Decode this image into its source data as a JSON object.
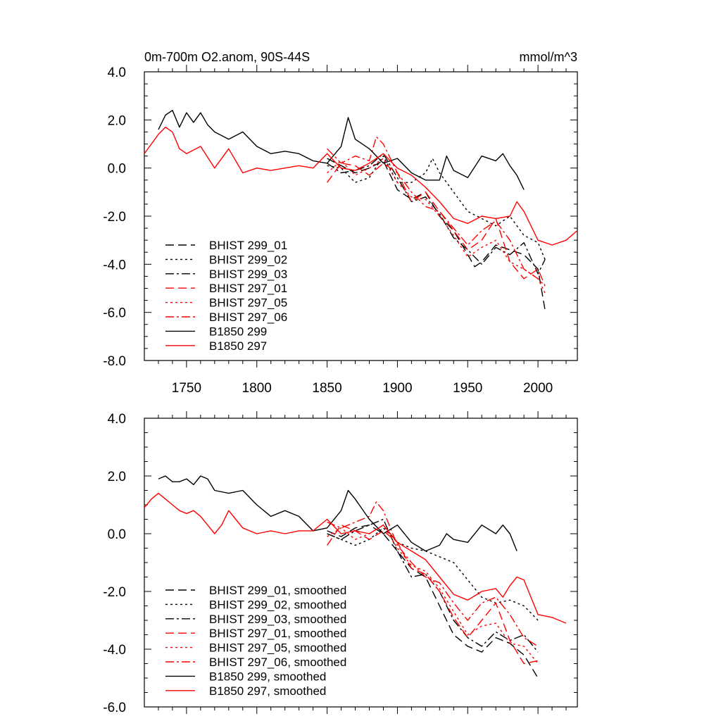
{
  "chart_data": [
    {
      "type": "line",
      "title_left": "0m-700m O2.anom, 90S-44S",
      "title_right": "mmol/m^3",
      "xlim": [
        1720,
        2028
      ],
      "ylim": [
        -8.0,
        4.0
      ],
      "xticks": [
        1750,
        1800,
        1850,
        1900,
        1950,
        2000
      ],
      "xtick_labels": [
        "1750",
        "1800",
        "1850",
        "1900",
        "1950",
        "2000"
      ],
      "yticks": [
        4.0,
        2.0,
        0.0,
        -2.0,
        -4.0,
        -6.0,
        -8.0
      ],
      "ytick_labels": [
        "4.0",
        "2.0",
        "0.0",
        "-2.0",
        "-4.0",
        "-6.0",
        "-8.0"
      ],
      "series": [
        {
          "name": "BHIST 299_01",
          "color": "#000000",
          "dash": "dash",
          "x": [
            1850,
            1860,
            1870,
            1880,
            1890,
            1900,
            1910,
            1920,
            1930,
            1940,
            1950,
            1955,
            1960,
            1970,
            1980,
            1990,
            2000,
            2005
          ],
          "values": [
            0.4,
            0.1,
            -0.2,
            0.0,
            0.3,
            -0.9,
            -1.3,
            -1.0,
            -2.0,
            -2.6,
            -3.6,
            -4.1,
            -3.9,
            -3.2,
            -3.4,
            -3.6,
            -4.2,
            -5.9
          ]
        },
        {
          "name": "BHIST 299_02",
          "color": "#000000",
          "dash": "dot",
          "x": [
            1850,
            1860,
            1870,
            1880,
            1890,
            1900,
            1910,
            1920,
            1925,
            1930,
            1940,
            1950,
            1960,
            1970,
            1980,
            1990,
            2000,
            2005
          ],
          "values": [
            0.1,
            0.0,
            -0.6,
            -0.4,
            0.5,
            -0.6,
            -0.6,
            -0.2,
            0.4,
            -0.2,
            -1.0,
            -1.8,
            -2.1,
            -2.4,
            -2.0,
            -2.8,
            -3.1,
            -3.8
          ]
        },
        {
          "name": "BHIST 299_03",
          "color": "#000000",
          "dash": "dashdot",
          "x": [
            1850,
            1860,
            1870,
            1880,
            1890,
            1900,
            1910,
            1920,
            1930,
            1940,
            1950,
            1960,
            1970,
            1980,
            1990,
            2000,
            2005
          ],
          "values": [
            0.2,
            -0.2,
            -0.1,
            0.1,
            0.6,
            -0.4,
            -1.4,
            -1.2,
            -1.9,
            -2.9,
            -3.4,
            -4.0,
            -3.3,
            -3.6,
            -3.1,
            -4.4,
            -3.8
          ]
        },
        {
          "name": "BHIST 297_01",
          "color": "#ff0000",
          "dash": "dash",
          "x": [
            1850,
            1860,
            1870,
            1880,
            1890,
            1900,
            1910,
            1920,
            1930,
            1940,
            1950,
            1960,
            1970,
            1980,
            1990,
            2000,
            2005
          ],
          "values": [
            -0.6,
            0.2,
            0.1,
            -0.3,
            0.2,
            -0.2,
            -1.4,
            -1.0,
            -1.8,
            -2.6,
            -3.4,
            -3.0,
            -2.1,
            -3.9,
            -4.6,
            -4.2,
            -4.9
          ]
        },
        {
          "name": "BHIST 297_05",
          "color": "#ff0000",
          "dash": "dot",
          "x": [
            1850,
            1860,
            1870,
            1880,
            1890,
            1900,
            1910,
            1920,
            1930,
            1940,
            1950,
            1960,
            1970,
            1980,
            1990,
            2000,
            2005
          ],
          "values": [
            -0.2,
            0.3,
            -0.3,
            0.0,
            0.4,
            -0.6,
            -1.2,
            -1.3,
            -2.0,
            -2.8,
            -3.7,
            -3.3,
            -3.0,
            -3.9,
            -4.2,
            -4.6,
            -5.2
          ]
        },
        {
          "name": "BHIST 297_06",
          "color": "#ff0000",
          "dash": "dashdot",
          "x": [
            1850,
            1860,
            1870,
            1880,
            1885,
            1890,
            1900,
            1910,
            1920,
            1930,
            1940,
            1950,
            1960,
            1970,
            1980,
            1990,
            2000,
            2005
          ],
          "values": [
            0.8,
            0.2,
            0.5,
            0.3,
            1.3,
            1.0,
            -0.2,
            -1.0,
            -1.6,
            -1.8,
            -2.5,
            -3.2,
            -2.6,
            -2.2,
            -3.0,
            -4.2,
            -4.6,
            -4.9
          ]
        },
        {
          "name": "B1850 299",
          "color": "#000000",
          "dash": "solid",
          "x": [
            1730,
            1735,
            1740,
            1745,
            1750,
            1755,
            1760,
            1765,
            1770,
            1780,
            1790,
            1800,
            1810,
            1820,
            1830,
            1840,
            1850,
            1860,
            1865,
            1870,
            1880,
            1890,
            1900,
            1910,
            1920,
            1930,
            1935,
            1940,
            1950,
            1960,
            1970,
            1975,
            1980,
            1985,
            1990
          ],
          "values": [
            1.6,
            2.2,
            2.4,
            1.7,
            2.3,
            1.9,
            2.3,
            1.8,
            1.5,
            1.2,
            1.5,
            0.9,
            0.6,
            0.7,
            0.6,
            0.3,
            0.2,
            0.9,
            2.1,
            1.2,
            0.8,
            0.2,
            0.4,
            -0.2,
            -0.5,
            -0.5,
            0.5,
            -0.1,
            -0.4,
            0.5,
            0.3,
            0.6,
            0.1,
            -0.3,
            -0.9
          ]
        },
        {
          "name": "B1850 297",
          "color": "#ff0000",
          "dash": "solid",
          "x": [
            1720,
            1725,
            1730,
            1735,
            1740,
            1745,
            1750,
            1760,
            1770,
            1780,
            1790,
            1800,
            1810,
            1820,
            1830,
            1840,
            1850,
            1860,
            1870,
            1880,
            1890,
            1900,
            1910,
            1920,
            1930,
            1940,
            1950,
            1960,
            1970,
            1980,
            1985,
            1990,
            2000,
            2010,
            2020,
            2028
          ],
          "values": [
            0.6,
            1.0,
            1.4,
            1.7,
            1.5,
            0.8,
            0.6,
            0.9,
            0.0,
            0.8,
            -0.2,
            0.0,
            -0.1,
            0.0,
            0.1,
            0.0,
            0.6,
            0.0,
            -0.1,
            0.2,
            0.6,
            0.0,
            -0.3,
            -0.8,
            -1.4,
            -2.1,
            -2.3,
            -2.0,
            -2.1,
            -2.0,
            -1.4,
            -1.8,
            -3.0,
            -3.2,
            -3.0,
            -2.6
          ]
        }
      ],
      "legend": [
        {
          "label": "BHIST 299_01",
          "color": "#000000",
          "dash": "dash"
        },
        {
          "label": "BHIST 299_02",
          "color": "#000000",
          "dash": "dot"
        },
        {
          "label": "BHIST 299_03",
          "color": "#000000",
          "dash": "dashdot"
        },
        {
          "label": "BHIST 297_01",
          "color": "#ff0000",
          "dash": "dash"
        },
        {
          "label": "BHIST 297_05",
          "color": "#ff0000",
          "dash": "dot"
        },
        {
          "label": "BHIST 297_06",
          "color": "#ff0000",
          "dash": "dashdot"
        },
        {
          "label": "B1850 299",
          "color": "#000000",
          "dash": "solid"
        },
        {
          "label": "B1850 297",
          "color": "#ff0000",
          "dash": "solid"
        }
      ]
    },
    {
      "type": "line",
      "xlim": [
        1720,
        2028
      ],
      "ylim": [
        -6.0,
        4.0
      ],
      "yticks": [
        4.0,
        2.0,
        0.0,
        -2.0,
        -4.0,
        -6.0
      ],
      "ytick_labels": [
        "4.0",
        "2.0",
        "0.0",
        "-2.0",
        "-4.0",
        "-6.0"
      ],
      "series": [
        {
          "name": "BHIST 299_01, smoothed",
          "color": "#000000",
          "dash": "dash",
          "x": [
            1850,
            1860,
            1870,
            1880,
            1890,
            1900,
            1910,
            1920,
            1930,
            1940,
            1950,
            1960,
            1970,
            1980,
            1990,
            2000
          ],
          "values": [
            0.1,
            -0.1,
            0.2,
            0.3,
            0.0,
            -0.6,
            -1.2,
            -1.5,
            -2.5,
            -3.5,
            -3.9,
            -4.1,
            -3.6,
            -3.8,
            -4.2,
            -5.0
          ]
        },
        {
          "name": "BHIST 299_02, smoothed",
          "color": "#000000",
          "dash": "dot",
          "x": [
            1850,
            1860,
            1870,
            1880,
            1890,
            1900,
            1910,
            1920,
            1930,
            1940,
            1950,
            1960,
            1970,
            1980,
            1990,
            2000
          ],
          "values": [
            0.0,
            -0.2,
            -0.4,
            -0.2,
            0.2,
            -0.3,
            -0.5,
            -0.6,
            -0.8,
            -1.0,
            -1.6,
            -2.2,
            -2.4,
            -2.3,
            -2.5,
            -3.0
          ]
        },
        {
          "name": "BHIST 299_03, smoothed",
          "color": "#000000",
          "dash": "dashdot",
          "x": [
            1850,
            1860,
            1870,
            1880,
            1890,
            1900,
            1910,
            1920,
            1930,
            1940,
            1950,
            1960,
            1970,
            1980,
            1990,
            2000
          ],
          "values": [
            0.0,
            -0.2,
            0.1,
            0.3,
            0.5,
            -0.6,
            -1.5,
            -1.4,
            -2.0,
            -3.0,
            -3.6,
            -3.9,
            -3.4,
            -3.7,
            -3.5,
            -4.1
          ]
        },
        {
          "name": "BHIST 297_01, smoothed",
          "color": "#ff0000",
          "dash": "dash",
          "x": [
            1850,
            1860,
            1870,
            1880,
            1890,
            1900,
            1910,
            1920,
            1930,
            1940,
            1950,
            1960,
            1970,
            1980,
            1990,
            2000
          ],
          "values": [
            -0.4,
            0.3,
            0.1,
            -0.2,
            0.1,
            -0.3,
            -1.2,
            -1.4,
            -2.0,
            -2.9,
            -3.6,
            -3.0,
            -2.4,
            -3.7,
            -4.5,
            -4.4
          ]
        },
        {
          "name": "BHIST 297_05, smoothed",
          "color": "#ff0000",
          "dash": "dot",
          "x": [
            1850,
            1860,
            1870,
            1880,
            1890,
            1900,
            1910,
            1920,
            1930,
            1940,
            1950,
            1960,
            1970,
            1980,
            1990,
            2000
          ],
          "values": [
            -0.1,
            0.2,
            -0.2,
            0.0,
            0.3,
            -0.5,
            -1.1,
            -1.3,
            -1.9,
            -2.7,
            -3.5,
            -3.2,
            -3.1,
            -3.8,
            -3.9,
            -4.5
          ]
        },
        {
          "name": "BHIST 297_06, smoothed",
          "color": "#ff0000",
          "dash": "dashdot",
          "x": [
            1850,
            1860,
            1870,
            1880,
            1885,
            1890,
            1900,
            1910,
            1920,
            1930,
            1940,
            1950,
            1960,
            1970,
            1980,
            1990,
            2000
          ],
          "values": [
            0.4,
            0.2,
            0.4,
            0.6,
            1.1,
            0.8,
            -0.4,
            -1.0,
            -1.5,
            -1.7,
            -2.4,
            -3.0,
            -2.4,
            -2.2,
            -2.8,
            -3.6,
            -3.9
          ]
        },
        {
          "name": "B1850 299, smoothed",
          "color": "#000000",
          "dash": "solid",
          "x": [
            1730,
            1735,
            1740,
            1745,
            1750,
            1755,
            1760,
            1765,
            1770,
            1780,
            1790,
            1800,
            1810,
            1820,
            1830,
            1840,
            1850,
            1860,
            1865,
            1870,
            1880,
            1890,
            1900,
            1910,
            1920,
            1930,
            1935,
            1940,
            1950,
            1960,
            1970,
            1975,
            1980,
            1985
          ],
          "values": [
            1.9,
            2.0,
            1.8,
            1.8,
            1.9,
            1.7,
            2.0,
            1.9,
            1.5,
            1.4,
            1.5,
            1.0,
            0.6,
            0.8,
            0.6,
            0.1,
            0.2,
            0.8,
            1.5,
            1.2,
            0.5,
            0.0,
            0.3,
            -0.3,
            -0.6,
            -0.4,
            0.0,
            -0.2,
            -0.3,
            0.3,
            0.0,
            0.3,
            0.0,
            -0.6
          ]
        },
        {
          "name": "B1850 297, smoothed",
          "color": "#ff0000",
          "dash": "solid",
          "x": [
            1720,
            1725,
            1730,
            1735,
            1740,
            1745,
            1750,
            1755,
            1760,
            1765,
            1770,
            1775,
            1780,
            1785,
            1790,
            1800,
            1810,
            1820,
            1830,
            1840,
            1850,
            1860,
            1870,
            1880,
            1890,
            1900,
            1910,
            1920,
            1930,
            1940,
            1950,
            1960,
            1970,
            1975,
            1980,
            1985,
            1990,
            2000,
            2010,
            2020
          ],
          "values": [
            0.9,
            1.2,
            1.4,
            1.2,
            1.0,
            0.8,
            0.7,
            0.8,
            0.6,
            0.3,
            0.0,
            0.3,
            0.8,
            0.5,
            0.2,
            0.0,
            0.1,
            0.0,
            0.1,
            0.1,
            0.5,
            0.0,
            0.1,
            0.0,
            0.3,
            -0.3,
            -0.6,
            -0.9,
            -1.5,
            -2.1,
            -2.3,
            -2.0,
            -1.9,
            -2.2,
            -1.8,
            -1.5,
            -1.6,
            -2.8,
            -2.9,
            -3.1
          ]
        }
      ],
      "legend": [
        {
          "label": "BHIST 299_01, smoothed",
          "color": "#000000",
          "dash": "dash"
        },
        {
          "label": "BHIST 299_02, smoothed",
          "color": "#000000",
          "dash": "dot"
        },
        {
          "label": "BHIST 299_03, smoothed",
          "color": "#000000",
          "dash": "dashdot"
        },
        {
          "label": "BHIST 297_01, smoothed",
          "color": "#ff0000",
          "dash": "dash"
        },
        {
          "label": "BHIST 297_05, smoothed",
          "color": "#ff0000",
          "dash": "dot"
        },
        {
          "label": "BHIST 297_06, smoothed",
          "color": "#ff0000",
          "dash": "dashdot"
        },
        {
          "label": "B1850 299, smoothed",
          "color": "#000000",
          "dash": "solid"
        },
        {
          "label": "B1850 297, smoothed",
          "color": "#ff0000",
          "dash": "solid"
        }
      ]
    }
  ]
}
